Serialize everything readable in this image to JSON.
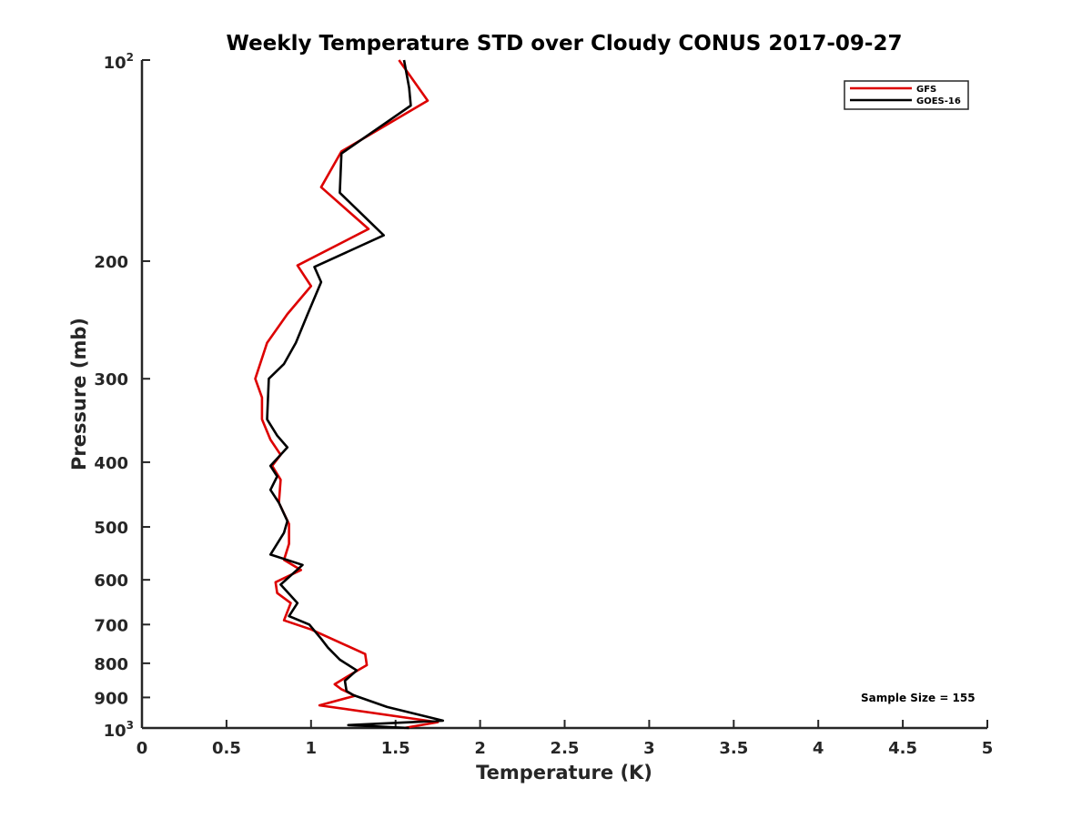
{
  "chart_data": {
    "type": "line",
    "title": "Weekly Temperature STD over Cloudy CONUS 2017-09-27",
    "xlabel": "Temperature (K)",
    "ylabel": "Pressure (mb)",
    "xlim": [
      0,
      5
    ],
    "ylim": [
      100,
      1000
    ],
    "y_scale": "log",
    "y_reversed": true,
    "x_ticks": [
      "0",
      "0.5",
      "1",
      "1.5",
      "2",
      "2.5",
      "3",
      "3.5",
      "4",
      "4.5",
      "5"
    ],
    "y_ticks": [
      {
        "value": 100,
        "base": "10",
        "exp": "2"
      },
      {
        "value": 200,
        "label": "200"
      },
      {
        "value": 300,
        "label": "300"
      },
      {
        "value": 400,
        "label": "400"
      },
      {
        "value": 500,
        "label": "500"
      },
      {
        "value": 600,
        "label": "600"
      },
      {
        "value": 700,
        "label": "700"
      },
      {
        "value": 800,
        "label": "800"
      },
      {
        "value": 900,
        "label": "900"
      },
      {
        "value": 1000,
        "base": "10",
        "exp": "3"
      }
    ],
    "legend_position": "top-right",
    "annotation": "Sample Size = 155",
    "series": [
      {
        "name": "GFS",
        "color": "#dd0000",
        "points": [
          [
            1.52,
            100
          ],
          [
            1.69,
            115
          ],
          [
            1.18,
            137
          ],
          [
            1.06,
            155
          ],
          [
            1.34,
            179
          ],
          [
            0.92,
            203
          ],
          [
            1.0,
            218
          ],
          [
            0.86,
            240
          ],
          [
            0.74,
            265
          ],
          [
            0.67,
            300
          ],
          [
            0.71,
            320
          ],
          [
            0.71,
            345
          ],
          [
            0.76,
            370
          ],
          [
            0.82,
            390
          ],
          [
            0.77,
            405
          ],
          [
            0.82,
            425
          ],
          [
            0.81,
            460
          ],
          [
            0.87,
            495
          ],
          [
            0.87,
            530
          ],
          [
            0.84,
            560
          ],
          [
            0.94,
            580
          ],
          [
            0.79,
            605
          ],
          [
            0.8,
            628
          ],
          [
            0.88,
            650
          ],
          [
            0.84,
            690
          ],
          [
            1.0,
            712
          ],
          [
            1.32,
            775
          ],
          [
            1.33,
            805
          ],
          [
            1.24,
            830
          ],
          [
            1.14,
            860
          ],
          [
            1.18,
            875
          ],
          [
            1.26,
            895
          ],
          [
            1.05,
            925
          ],
          [
            1.75,
            980
          ],
          [
            1.55,
            1000
          ]
        ]
      },
      {
        "name": "GOES-16",
        "color": "#000000",
        "points": [
          [
            1.55,
            100
          ],
          [
            1.58,
            110
          ],
          [
            1.59,
            117
          ],
          [
            1.18,
            138
          ],
          [
            1.17,
            158
          ],
          [
            1.43,
            183
          ],
          [
            1.02,
            204
          ],
          [
            1.06,
            215
          ],
          [
            0.98,
            240
          ],
          [
            0.91,
            265
          ],
          [
            0.84,
            285
          ],
          [
            0.75,
            300
          ],
          [
            0.74,
            345
          ],
          [
            0.8,
            365
          ],
          [
            0.86,
            380
          ],
          [
            0.8,
            395
          ],
          [
            0.76,
            405
          ],
          [
            0.8,
            420
          ],
          [
            0.76,
            440
          ],
          [
            0.81,
            460
          ],
          [
            0.86,
            490
          ],
          [
            0.84,
            510
          ],
          [
            0.76,
            550
          ],
          [
            0.95,
            570
          ],
          [
            0.82,
            610
          ],
          [
            0.92,
            650
          ],
          [
            0.87,
            680
          ],
          [
            0.99,
            700
          ],
          [
            1.06,
            735
          ],
          [
            1.1,
            758
          ],
          [
            1.17,
            790
          ],
          [
            1.27,
            820
          ],
          [
            1.2,
            850
          ],
          [
            1.21,
            880
          ],
          [
            1.25,
            893
          ],
          [
            1.45,
            930
          ],
          [
            1.78,
            975
          ],
          [
            1.22,
            990
          ],
          [
            1.58,
            1000
          ]
        ]
      }
    ]
  }
}
